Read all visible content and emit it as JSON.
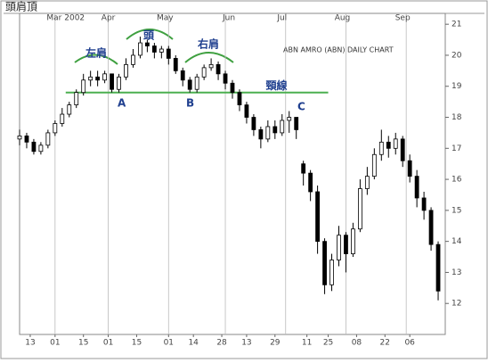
{
  "chart_data": {
    "type": "candlestick",
    "title": "頭肩頂",
    "subtitle": "ABN AMRO (ABN) DAILY CHART",
    "xlim": [
      0,
      120
    ],
    "ylim": [
      11,
      21.35
    ],
    "yticks": [
      12,
      13,
      14,
      15,
      16,
      17,
      18,
      19,
      20,
      21
    ],
    "xticks": [
      {
        "value": 3,
        "label": "13"
      },
      {
        "value": 10,
        "label": "01"
      },
      {
        "value": 18,
        "label": "15"
      },
      {
        "value": 25,
        "label": "01"
      },
      {
        "value": 33,
        "label": "15"
      },
      {
        "value": 42,
        "label": "01"
      },
      {
        "value": 49,
        "label": "14"
      },
      {
        "value": 57,
        "label": "28"
      },
      {
        "value": 64,
        "label": "13"
      },
      {
        "value": 72,
        "label": "29"
      },
      {
        "value": 81,
        "label": "11"
      },
      {
        "value": 87,
        "label": "25"
      },
      {
        "value": 95,
        "label": "08"
      },
      {
        "value": 103,
        "label": "22"
      },
      {
        "value": 110,
        "label": "06"
      }
    ],
    "month_ticks": [
      {
        "value": 13,
        "label": "Mar 2002"
      },
      {
        "value": 25,
        "label": "Apr"
      },
      {
        "value": 41,
        "label": "May"
      },
      {
        "value": 59,
        "label": "Jun"
      },
      {
        "value": 74,
        "label": "Jul"
      },
      {
        "value": 91,
        "label": "Aug"
      },
      {
        "value": 108,
        "label": "Sep"
      }
    ],
    "grid_x": [
      10,
      25,
      42,
      58,
      75,
      92,
      109
    ],
    "color": "#000000",
    "x": [
      0,
      2,
      4,
      6,
      8,
      10,
      12,
      14,
      16,
      18,
      20,
      22,
      24,
      26,
      28,
      30,
      32,
      34,
      36,
      38,
      40,
      42,
      44,
      46,
      48,
      50,
      52,
      54,
      56,
      58,
      60,
      62,
      64,
      66,
      68,
      70,
      72,
      74,
      76,
      78,
      80,
      82,
      84,
      86,
      88,
      90,
      92,
      94,
      96,
      98,
      100,
      102,
      104,
      106,
      108,
      110,
      112,
      114,
      116,
      118
    ],
    "open": [
      17.3,
      17.4,
      17.2,
      16.9,
      17.1,
      17.5,
      17.8,
      18.1,
      18.4,
      18.8,
      19.2,
      19.3,
      19.2,
      19.4,
      18.9,
      19.3,
      19.7,
      20.0,
      20.4,
      20.3,
      20.1,
      20.2,
      19.9,
      19.5,
      19.2,
      18.9,
      19.3,
      19.6,
      19.7,
      19.4,
      19.1,
      18.8,
      18.4,
      18.0,
      17.6,
      17.3,
      17.7,
      17.5,
      17.9,
      18.0,
      16.5,
      16.2,
      15.6,
      14.0,
      12.6,
      13.4,
      14.2,
      13.6,
      14.4,
      15.7,
      16.1,
      16.8,
      17.2,
      17.0,
      17.3,
      16.6,
      16.1,
      15.4,
      15.0,
      13.9
    ],
    "high": [
      17.6,
      17.5,
      17.3,
      17.2,
      17.6,
      17.9,
      18.3,
      18.5,
      18.9,
      19.4,
      19.5,
      19.5,
      19.5,
      19.4,
      19.4,
      19.9,
      20.2,
      20.6,
      20.5,
      20.4,
      20.3,
      20.3,
      20.0,
      19.6,
      19.3,
      19.4,
      19.7,
      19.9,
      19.8,
      19.5,
      19.2,
      18.9,
      18.5,
      18.1,
      17.7,
      17.9,
      17.9,
      18.1,
      18.2,
      18.0,
      16.6,
      16.3,
      15.8,
      14.1,
      13.6,
      14.5,
      14.3,
      14.6,
      16.0,
      16.4,
      17.0,
      17.6,
      17.4,
      17.5,
      17.4,
      16.8,
      16.3,
      15.6,
      15.1,
      14.0
    ],
    "low": [
      17.1,
      17.0,
      16.8,
      16.8,
      17.0,
      17.4,
      17.7,
      18.0,
      18.3,
      18.7,
      19.0,
      19.0,
      19.1,
      18.8,
      18.8,
      19.2,
      19.6,
      19.9,
      20.1,
      19.9,
      19.9,
      19.7,
      19.4,
      19.0,
      18.8,
      18.8,
      19.2,
      19.5,
      19.2,
      18.9,
      18.6,
      18.2,
      17.8,
      17.4,
      17.0,
      17.2,
      17.3,
      17.4,
      17.5,
      17.3,
      15.8,
      15.3,
      13.6,
      12.3,
      12.4,
      13.2,
      13.0,
      13.5,
      14.3,
      15.5,
      16.0,
      16.6,
      16.7,
      16.8,
      16.4,
      15.9,
      15.1,
      14.7,
      13.7,
      12.1
    ],
    "close": [
      17.4,
      17.2,
      16.9,
      17.1,
      17.5,
      17.8,
      18.1,
      18.4,
      18.8,
      19.2,
      19.3,
      19.2,
      19.4,
      18.9,
      19.3,
      19.7,
      20.0,
      20.4,
      20.3,
      20.1,
      20.2,
      19.9,
      19.5,
      19.2,
      18.9,
      19.3,
      19.6,
      19.7,
      19.4,
      19.1,
      18.8,
      18.4,
      18.0,
      17.6,
      17.3,
      17.7,
      17.5,
      17.9,
      18.0,
      17.6,
      16.2,
      15.6,
      14.0,
      12.6,
      13.4,
      14.2,
      13.6,
      14.4,
      15.7,
      16.1,
      16.8,
      17.2,
      17.0,
      17.3,
      16.6,
      16.1,
      15.4,
      15.0,
      13.9,
      12.4
    ],
    "neckline": {
      "label": "頸線",
      "y": 18.8,
      "x": [
        13,
        87
      ],
      "color": "#4caf50"
    },
    "annotations": [
      "左肩",
      "頭",
      "右肩",
      "A",
      "B",
      "C"
    ]
  }
}
